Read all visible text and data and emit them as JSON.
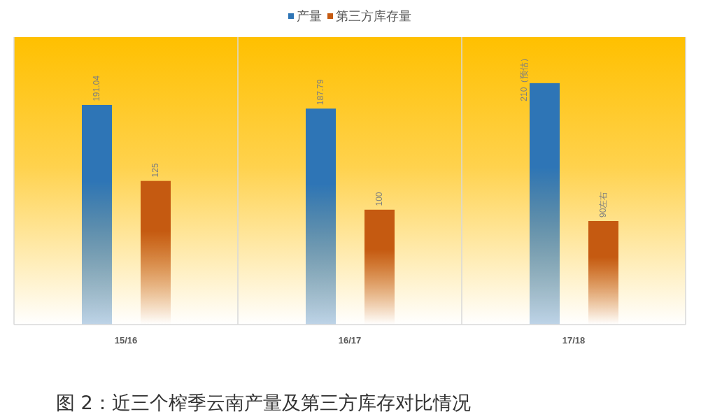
{
  "chart_data": {
    "type": "bar",
    "categories": [
      "15/16",
      "16/17",
      "17/18"
    ],
    "series": [
      {
        "name": "产量",
        "color": "#2e75b6",
        "values": [
          191.04,
          187.79,
          210
        ],
        "value_labels": [
          "191.04",
          "187.79",
          "210（预估）"
        ]
      },
      {
        "name": "第三方库存量",
        "color": "#c55a11",
        "values": [
          125,
          100,
          90
        ],
        "value_labels": [
          "125",
          "100",
          "90左右"
        ]
      }
    ],
    "legend": "top",
    "grid": "x",
    "annotations": [
      "图 2：近三个榨季云南产量及第三方库存对比情况"
    ]
  }
}
